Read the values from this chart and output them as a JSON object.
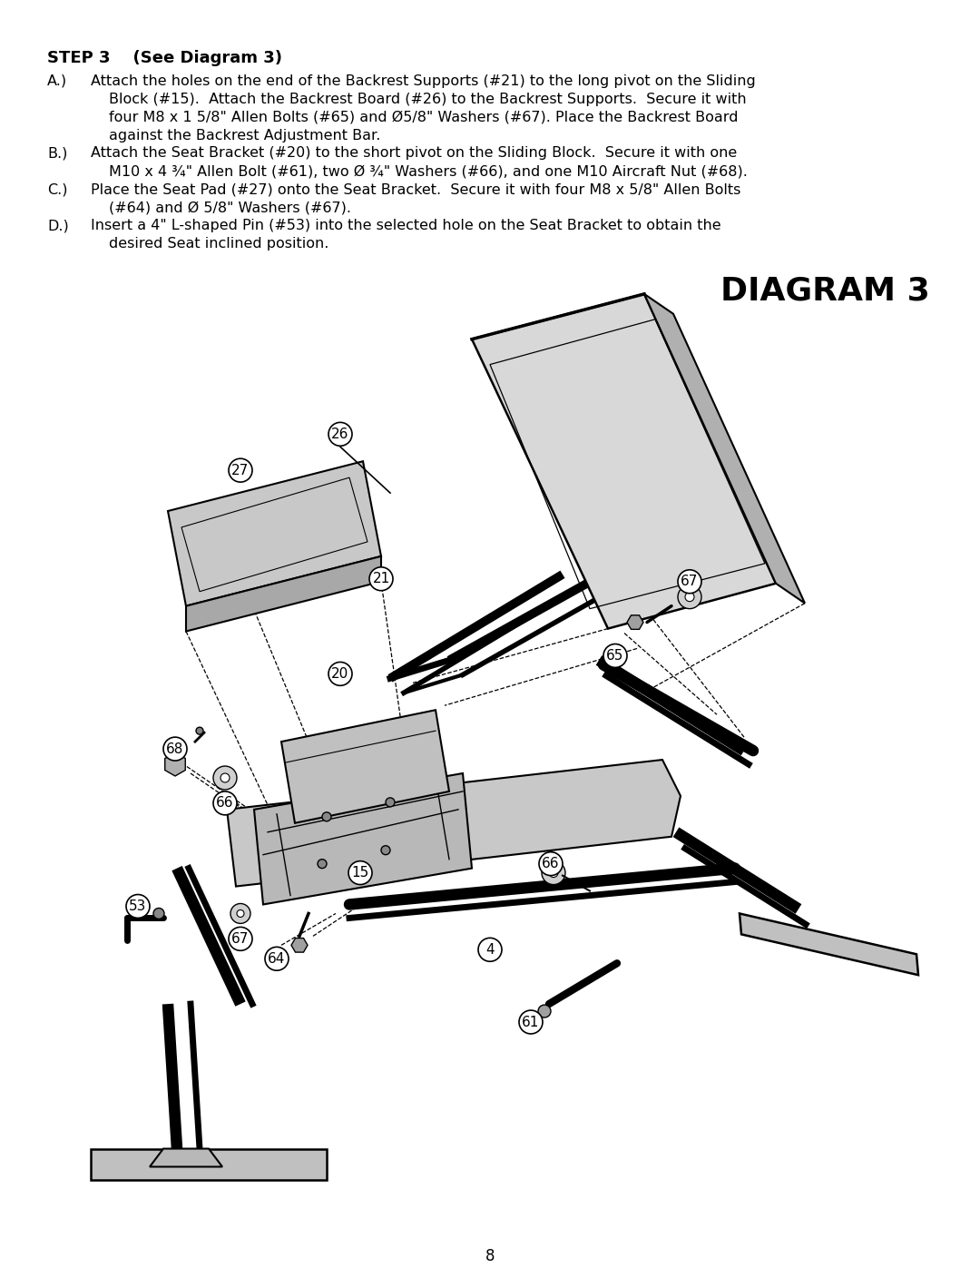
{
  "page_number": "8",
  "background_color": "#ffffff",
  "title_step": "STEP 3    (See Diagram 3)",
  "diagram_title": "DIAGRAM 3",
  "text_color": "#000000",
  "title_fontsize": 13,
  "body_fontsize": 11.5,
  "diagram_title_fontsize": 26,
  "instruction_lines": [
    [
      "A.)",
      "Attach the holes on the end of the Backrest Supports (#21) to the long pivot on the Sliding"
    ],
    [
      "",
      "Block (#15).  Attach the Backrest Board (#26) to the Backrest Supports.  Secure it with"
    ],
    [
      "",
      "four M8 x 1 5/8\" Allen Bolts (#65) and Ø5/8\" Washers (#67). Place the Backrest Board"
    ],
    [
      "",
      "against the Backrest Adjustment Bar."
    ],
    [
      "B.)",
      "Attach the Seat Bracket (#20) to the short pivot on the Sliding Block.  Secure it with one"
    ],
    [
      "",
      "M10 x 4 ¾\" Allen Bolt (#61), two Ø ¾\" Washers (#66), and one M10 Aircraft Nut (#68)."
    ],
    [
      "C.)",
      "Place the Seat Pad (#27) onto the Seat Bracket.  Secure it with four M8 x 5/8\" Allen Bolts"
    ],
    [
      "",
      "(#64) and Ø 5/8\" Washers (#67)."
    ],
    [
      "D.)",
      "Insert a 4\" L-shaped Pin (#53) into the selected hole on the Seat Bracket to obtain the"
    ],
    [
      "",
      "desired Seat inclined position."
    ]
  ]
}
